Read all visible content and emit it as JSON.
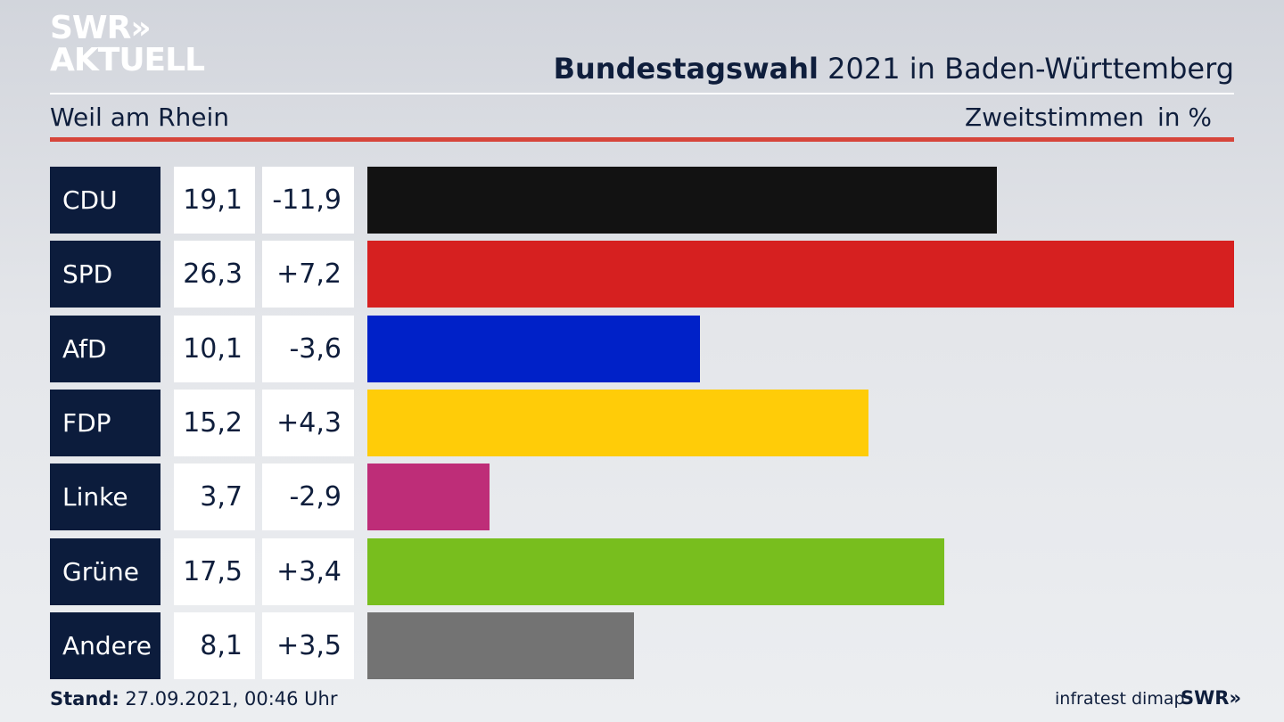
{
  "header": {
    "logo_line1": "SWR»",
    "logo_line2": "AKTUELL",
    "title_bold": "Bundestagswahl",
    "title_rest": " 2021 in Baden-Württemberg",
    "subtitle": "Weil am Rhein",
    "measure": "Zweitstimmen",
    "unit": "in %"
  },
  "chart_data": {
    "type": "bar",
    "orientation": "horizontal",
    "xlim": [
      0,
      26.3
    ],
    "categories": [
      "CDU",
      "SPD",
      "AfD",
      "FDP",
      "Linke",
      "Grüne",
      "Andere"
    ],
    "values_display": [
      "19,1",
      "26,3",
      "10,1",
      "15,2",
      "3,7",
      "17,5",
      "8,1"
    ],
    "changes_display": [
      "-11,9",
      "+7,2",
      "-3,6",
      "+4,3",
      "-2,9",
      "+3,4",
      "+3,5"
    ],
    "values": [
      19.1,
      26.3,
      10.1,
      15.2,
      3.7,
      17.5,
      8.1
    ],
    "changes": [
      -11.9,
      7.2,
      -3.6,
      4.3,
      -2.9,
      3.4,
      3.5
    ],
    "colors": [
      "#121212",
      "#d62020",
      "#0021c8",
      "#ffcc08",
      "#be2d78",
      "#78be1e",
      "#737373"
    ]
  },
  "footer": {
    "stand_label": "Stand:",
    "stand_value": " 27.09.2021, 00:46 Uhr",
    "source": "infratest dimap",
    "brand": "SWR»"
  }
}
